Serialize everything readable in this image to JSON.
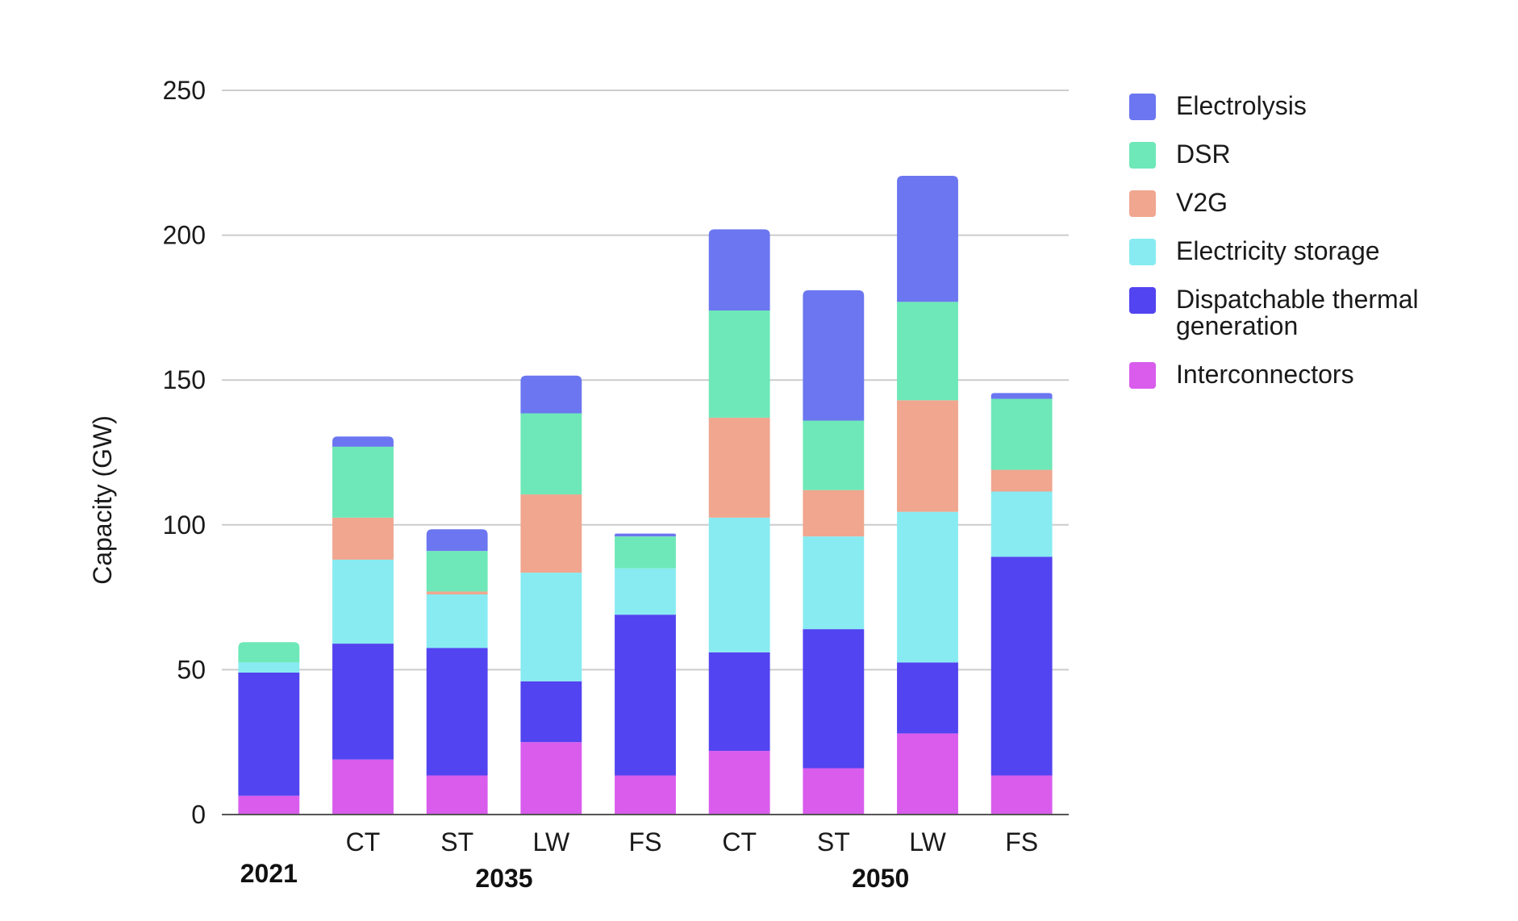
{
  "chart_data": {
    "type": "bar",
    "stacked": true,
    "ylabel": "Capacity (GW)",
    "ylim": [
      0,
      250
    ],
    "yticks": [
      0,
      50,
      100,
      150,
      200,
      250
    ],
    "grid": true,
    "legend_position": "right",
    "categories": [
      "",
      "CT",
      "ST",
      "LW",
      "FS",
      "CT",
      "ST",
      "LW",
      "FS"
    ],
    "groups": [
      {
        "label": "2021",
        "start": 0,
        "end": 0
      },
      {
        "label": "2035",
        "start": 1,
        "end": 4
      },
      {
        "label": "2050",
        "start": 5,
        "end": 8
      }
    ],
    "series": [
      {
        "name": "Interconnectors",
        "color": "#d95ced",
        "values": [
          6.5,
          19,
          13.5,
          25,
          13.5,
          22,
          16,
          28,
          13.5
        ]
      },
      {
        "name": "Dispatchable thermal generation",
        "color": "#5244f0",
        "values": [
          42.5,
          40,
          44,
          21,
          55.5,
          34,
          48,
          24.5,
          75.5
        ]
      },
      {
        "name": "Electricity storage",
        "color": "#88ebf2",
        "values": [
          3.5,
          29,
          18.5,
          37.5,
          16,
          46.5,
          32,
          52,
          22.5
        ]
      },
      {
        "name": "V2G",
        "color": "#f0a68f",
        "values": [
          0,
          14.5,
          1,
          27,
          0,
          34.5,
          16,
          38.5,
          7.5
        ]
      },
      {
        "name": "DSR",
        "color": "#6ee8b8",
        "values": [
          7,
          24.5,
          14,
          28,
          11,
          37,
          24,
          34,
          24.5
        ]
      },
      {
        "name": "Electrolysis",
        "color": "#6b76f0",
        "values": [
          0,
          3.5,
          7.5,
          13,
          1,
          28,
          45,
          43.5,
          2
        ]
      }
    ],
    "legend_order": [
      "Electrolysis",
      "DSR",
      "V2G",
      "Electricity storage",
      "Dispatchable thermal generation",
      "Interconnectors"
    ]
  }
}
